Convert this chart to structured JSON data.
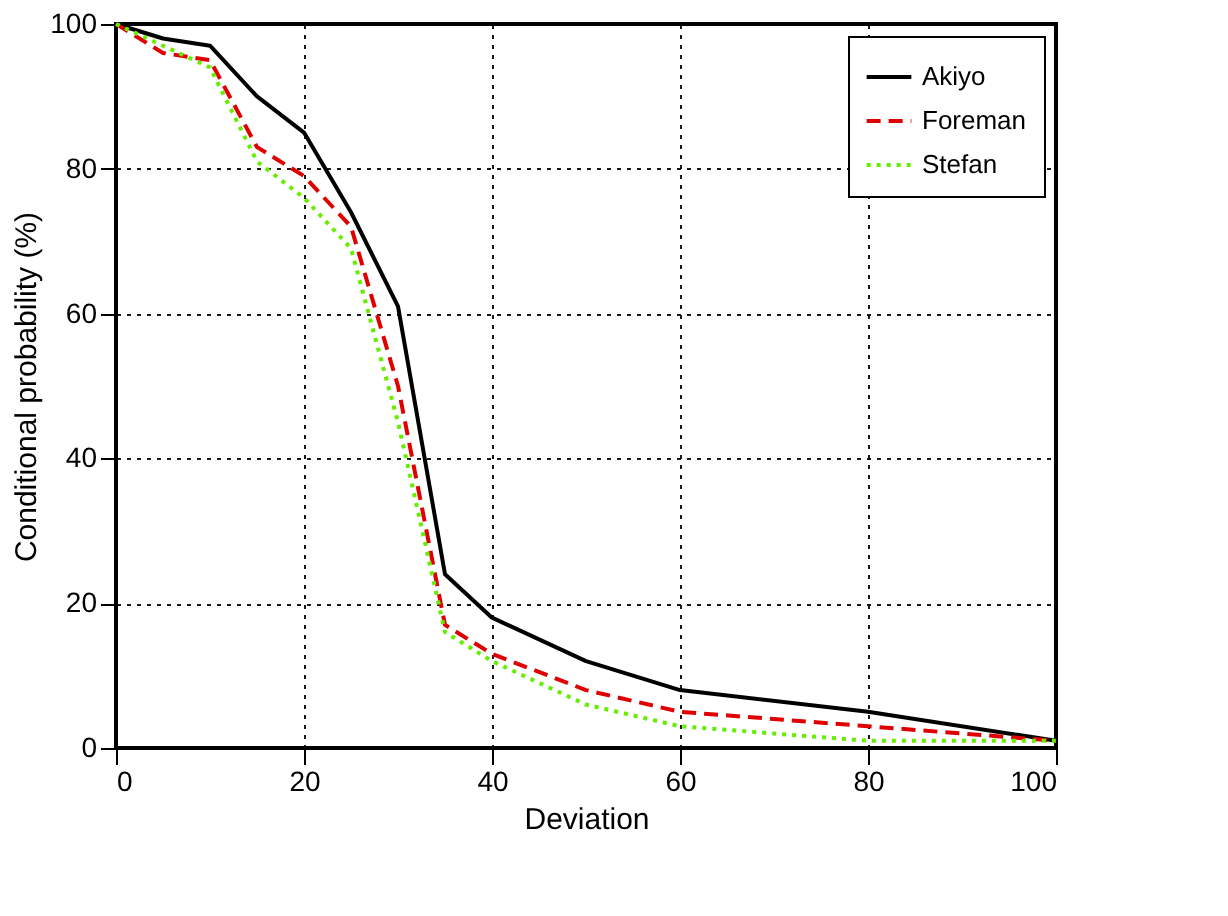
{
  "chart_data": {
    "type": "line",
    "xlabel": "Deviation",
    "ylabel": "Conditional probability (%)",
    "x": [
      0,
      5,
      10,
      15,
      20,
      25,
      30,
      35,
      40,
      50,
      60,
      80,
      100
    ],
    "series": [
      {
        "name": "Akiyo",
        "color": "#000000",
        "line_style": "solid",
        "values": [
          100,
          98,
          97,
          90,
          85,
          74,
          61,
          24,
          18,
          12,
          8,
          5,
          1
        ]
      },
      {
        "name": "Foreman",
        "color": "#e00000",
        "line_style": "dashed",
        "values": [
          100,
          96,
          95,
          83,
          79,
          72,
          50,
          17,
          13,
          8,
          5,
          3,
          1
        ]
      },
      {
        "name": "Stefan",
        "color": "#66ee00",
        "line_style": "dotted",
        "values": [
          100,
          97,
          94,
          81,
          76,
          69,
          45,
          16,
          12,
          6,
          3,
          1,
          1
        ]
      }
    ],
    "xlim": [
      0,
      100
    ],
    "xticks": [
      0,
      20,
      40,
      60,
      80,
      100
    ],
    "ylim": [
      0,
      100
    ],
    "yticks": [
      0,
      20,
      40,
      60,
      80,
      100
    ],
    "grid": true,
    "legend": "top right",
    "marker": "none"
  }
}
